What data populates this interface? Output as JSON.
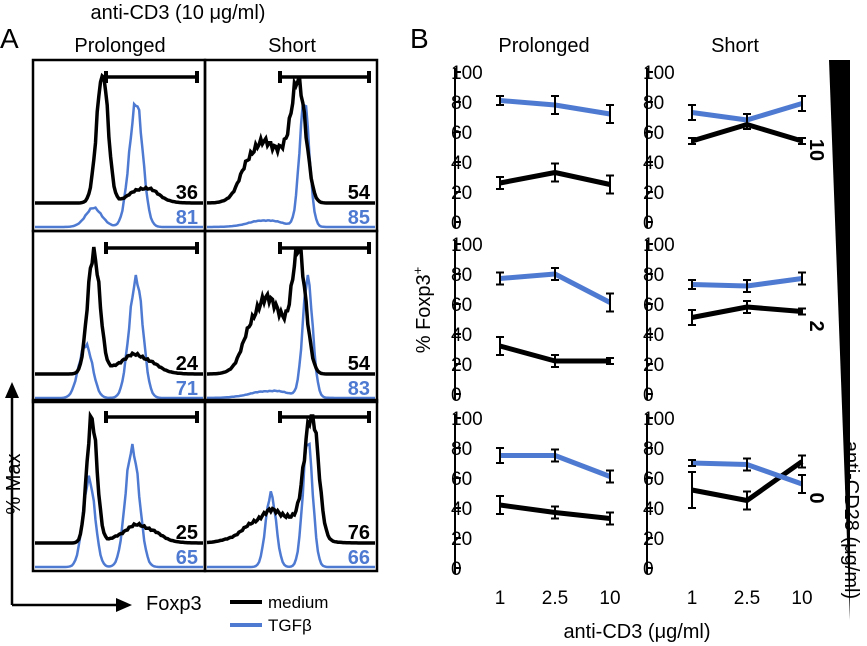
{
  "colors": {
    "medium": "#000000",
    "tgfb": "#4f7ad2"
  },
  "panel_a": {
    "label": "A",
    "title": "anti-CD3 (10 μg/ml)",
    "col_headers": [
      "Prolonged",
      "Short"
    ],
    "ylabel": "% Max",
    "xlabel": "Foxp3",
    "cells": [
      {
        "medium": "36",
        "tgfb": "81"
      },
      {
        "medium": "54",
        "tgfb": "85"
      },
      {
        "medium": "24",
        "tgfb": "71"
      },
      {
        "medium": "54",
        "tgfb": "83"
      },
      {
        "medium": "25",
        "tgfb": "65"
      },
      {
        "medium": "76",
        "tgfb": "66"
      }
    ]
  },
  "legend": {
    "items": [
      {
        "name": "medium",
        "color": "#000000"
      },
      {
        "name": "TGFβ",
        "color": "#4f7ad2"
      }
    ]
  },
  "panel_b": {
    "label": "B",
    "col_headers": [
      "Prolonged",
      "Short"
    ],
    "ylabel_main": "% Foxp3",
    "ylabel_sup": "+",
    "xlabel": "anti-CD3 (μg/ml)",
    "side_label": "anti-CD28 (μg/ml)",
    "row_labels": [
      "10",
      "2",
      "0"
    ],
    "y_ticks": [
      "100",
      "80",
      "60",
      "40",
      "20",
      "0"
    ],
    "x_ticks": [
      "1",
      "2.5",
      "10"
    ]
  },
  "chart_data": [
    {
      "type": "histogram",
      "title": "anti-CD3 (10 μg/ml)",
      "xlabel": "Foxp3",
      "ylabel": "% Max",
      "columns": [
        "Prolonged",
        "Short"
      ],
      "series": [
        "medium",
        "TGFβ"
      ],
      "gate_percentages": [
        {
          "column": "Prolonged",
          "row": 1,
          "medium": 36,
          "TGFβ": 81
        },
        {
          "column": "Short",
          "row": 1,
          "medium": 54,
          "TGFβ": 85
        },
        {
          "column": "Prolonged",
          "row": 2,
          "medium": 24,
          "TGFβ": 71
        },
        {
          "column": "Short",
          "row": 2,
          "medium": 54,
          "TGFβ": 83
        },
        {
          "column": "Prolonged",
          "row": 3,
          "medium": 25,
          "TGFβ": 65
        },
        {
          "column": "Short",
          "row": 3,
          "medium": 76,
          "TGFβ": 66
        }
      ]
    },
    {
      "type": "line",
      "xlabel": "anti-CD3 (μg/ml)",
      "ylabel": "% Foxp3+",
      "x": [
        "1",
        "2.5",
        "10"
      ],
      "ylim": [
        0,
        100
      ],
      "panels": [
        {
          "column": "Prolonged",
          "anti_CD28": "10",
          "series": [
            {
              "name": "medium",
              "values": [
                26,
                33,
                25
              ],
              "errors": [
                4,
                6,
                6
              ]
            },
            {
              "name": "TGFβ",
              "values": [
                81,
                78,
                72
              ],
              "errors": [
                3,
                6,
                6
              ]
            }
          ]
        },
        {
          "column": "Short",
          "anti_CD28": "10",
          "series": [
            {
              "name": "medium",
              "values": [
                54,
                65,
                54
              ],
              "errors": [
                2,
                3,
                2
              ]
            },
            {
              "name": "TGFβ",
              "values": [
                73,
                68,
                79
              ],
              "errors": [
                5,
                4,
                5
              ]
            }
          ]
        },
        {
          "column": "Prolonged",
          "anti_CD28": "2",
          "series": [
            {
              "name": "medium",
              "values": [
                32,
                22,
                22
              ],
              "errors": [
                6,
                4,
                2
              ]
            },
            {
              "name": "TGFβ",
              "values": [
                77,
                80,
                61
              ],
              "errors": [
                4,
                4,
                6
              ]
            }
          ]
        },
        {
          "column": "Short",
          "anti_CD28": "2",
          "series": [
            {
              "name": "medium",
              "values": [
                51,
                58,
                55
              ],
              "errors": [
                5,
                4,
                2
              ]
            },
            {
              "name": "TGFβ",
              "values": [
                73,
                72,
                77
              ],
              "errors": [
                3,
                4,
                4
              ]
            }
          ]
        },
        {
          "column": "Prolonged",
          "anti_CD28": "0",
          "series": [
            {
              "name": "medium",
              "values": [
                42,
                37,
                33
              ],
              "errors": [
                6,
                4,
                4
              ]
            },
            {
              "name": "TGFβ",
              "values": [
                75,
                75,
                61
              ],
              "errors": [
                5,
                4,
                4
              ]
            }
          ]
        },
        {
          "column": "Short",
          "anti_CD28": "0",
          "series": [
            {
              "name": "medium",
              "values": [
                52,
                45,
                71
              ],
              "errors": [
                12,
                6,
                4
              ]
            },
            {
              "name": "TGFβ",
              "values": [
                70,
                69,
                56
              ],
              "errors": [
                2,
                4,
                6
              ]
            }
          ]
        }
      ]
    }
  ]
}
